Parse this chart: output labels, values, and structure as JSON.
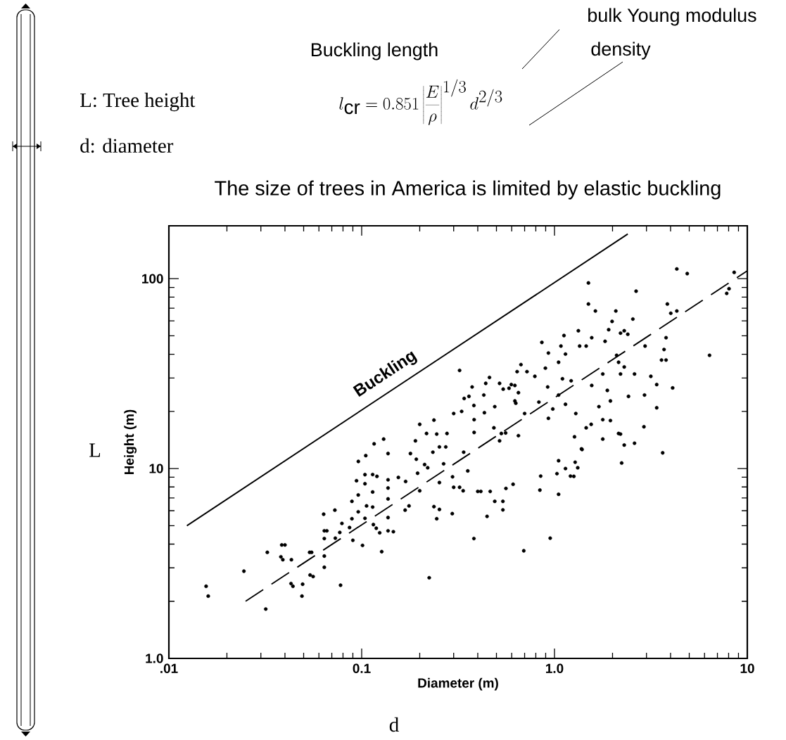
{
  "chart_data": {
    "type": "scatter",
    "title": "The size of trees in America is limited by elastic buckling",
    "xlabel": "Diameter (m)",
    "ylabel": "Height (m)",
    "log": "xy",
    "xlim": [
      0.01,
      10
    ],
    "ylim": [
      1,
      190
    ],
    "xticks": [
      {
        "value": 0.01,
        "label": ".01"
      },
      0.1,
      {
        "value": 1,
        "label": "1.0"
      },
      10
    ],
    "yticks": [
      {
        "value": 1,
        "label": "1.0"
      },
      10,
      100
    ],
    "annotations": [
      "Buckling length",
      "bulk Young modulus",
      "density",
      "l_{\\mathrm{cr}} = 0.851 \\left|\\frac{E}{\\rho}\\right|^{1/3} d^{2/3}",
      "L: Tree height",
      "d: diameter",
      "L",
      "d",
      "Buckling"
    ],
    "series": [
      {
        "color": "#000000",
        "x": [
          0.0156,
          0.016,
          0.0245,
          0.0318,
          0.0324,
          0.0381,
          0.039,
          0.0385,
          0.04,
          0.0432,
          0.043,
          0.044,
          0.0494,
          0.049,
          0.0537,
          0.055,
          0.054,
          0.056,
          0.0635,
          0.064,
          0.066,
          0.064,
          0.064,
          0.064,
          0.0726,
          0.073,
          0.0777,
          0.079,
          0.077,
          0.0865,
          0.089,
          0.09,
          0.089,
          0.0961,
          0.094,
          0.096,
          0.096,
          0.101,
          0.105,
          0.104,
          0.104,
          0.104,
          0.106,
          0.114,
          0.12,
          0.114,
          0.114,
          0.115,
          0.119,
          0.124,
          0.127,
          0.137,
          0.137,
          0.137,
          0.137,
          0.137,
          0.137,
          0.146,
          0.155,
          0.169,
          0.168,
          0.176,
          0.179,
          0.192,
          0.195,
          0.2,
          0.212,
          0.22,
          0.224,
          0.234,
          0.237,
          0.245,
          0.253,
          0.253,
          0.273,
          0.266,
          0.253,
          0.295,
          0.296,
          0.3,
          0.322,
          0.336,
          0.355,
          0.338,
          0.322,
          0.34,
          0.36,
          0.3,
          0.33,
          0.2,
          0.237,
          0.217,
          0.245,
          0.277,
          0.116,
          0.13,
          0.19,
          0.382,
          0.383,
          0.383,
          0.433,
          0.43,
          0.374,
          0.46,
          0.44,
          0.49,
          0.485,
          0.519,
          0.542,
          0.581,
          0.597,
          0.623,
          0.519,
          0.53,
          0.558,
          0.623,
          0.63,
          0.65,
          0.67,
          0.64,
          0.65,
          0.7,
          0.72,
          0.791,
          0.86,
          0.897,
          0.922,
          0.83,
          0.93,
          0.98,
          0.93,
          1.05,
          1.08,
          1.14,
          1.05,
          1.1,
          1.14,
          1.22,
          1.12,
          1.33,
          1.35,
          1.46,
          1.56,
          1.29,
          1.27,
          1.38,
          1.55,
          1.46,
          1.5,
          1.5,
          1.63,
          1.56,
          1.7,
          1.78,
          1.78,
          1.78,
          1.83,
          1.91,
          1.99,
          2.08,
          1.95,
          1.88,
          1.95,
          2.1,
          2.15,
          2.2,
          2.3,
          2.15,
          2.2,
          2.3,
          2.6,
          2.2,
          2.3,
          2.4,
          2.55,
          2.42,
          2.6,
          2.65,
          2.91,
          2.95,
          2.93,
          3.16,
          3.39,
          3.39,
          3.59,
          3.79,
          3.7,
          3.79,
          3.85,
          4.01,
          4.31,
          4.1,
          4.31,
          4.88,
          6.37,
          7.82,
          8.04,
          8.55,
          0.382,
          0.447,
          0.49,
          0.54,
          0.54,
          0.693,
          0.84,
          1.05,
          1.03,
          0.95,
          3.64,
          2.23,
          1.39,
          1.32,
          1.28,
          1.14,
          1.21,
          1.26,
          1.05,
          0.848,
          0.61,
          0.56,
          0.464,
          0.415,
          0.4
        ],
        "values": [
          2.4,
          2.13,
          2.88,
          1.82,
          3.62,
          3.43,
          3.31,
          3.96,
          3.96,
          3.31,
          2.48,
          2.4,
          2.46,
          2.13,
          3.62,
          3.62,
          2.75,
          2.7,
          5.75,
          4.7,
          4.7,
          4.28,
          3.46,
          3.02,
          6.04,
          4.3,
          2.43,
          5.14,
          4.61,
          4.89,
          6.72,
          4.19,
          5.44,
          10.9,
          8.63,
          7.26,
          5.92,
          3.94,
          11.7,
          9.29,
          8.32,
          5.47,
          6.36,
          9.3,
          9.1,
          7.53,
          6.27,
          5.07,
          4.85,
          4.59,
          3.65,
          12.0,
          8.73,
          7.9,
          6.92,
          5.52,
          4.7,
          4.65,
          8.98,
          8.55,
          6.04,
          6.36,
          12.0,
          11.2,
          9.45,
          7.64,
          10.5,
          10.1,
          2.66,
          12.2,
          6.3,
          5.44,
          6.09,
          13.0,
          13.0,
          10.6,
          8.44,
          5.79,
          9.05,
          7.97,
          7.97,
          7.64,
          9.72,
          12.2,
          32.9,
          23.4,
          24,
          19.5,
          20,
          17.1,
          18.0,
          15.3,
          15.2,
          15.3,
          13.5,
          14.3,
          14.0,
          21.5,
          18.1,
          15.5,
          19.7,
          24.4,
          26.9,
          30.2,
          28.1,
          21.2,
          16.4,
          28.1,
          26.2,
          26.5,
          27.7,
          27.4,
          14.0,
          15.3,
          15.4,
          22.7,
          22.1,
          25.1,
          35.3,
          32.4,
          14.9,
          19.5,
          32.4,
          30.6,
          46.2,
          33.8,
          26.9,
          22.4,
          18.4,
          20.6,
          40.6,
          36.3,
          44.2,
          40.1,
          24.4,
          29.7,
          21.8,
          29.0,
          50.2,
          53.2,
          44.2,
          44.2,
          48.9,
          19.5,
          14.7,
          12.7,
          17.1,
          16.4,
          95,
          73.6,
          67.6,
          27.4,
          21.2,
          31.5,
          18.1,
          14.3,
          46.8,
          53.9,
          59.6,
          67.6,
          17.9,
          25.8,
          22.7,
          39.5,
          36.3,
          31.5,
          34.3,
          15.3,
          15.2,
          13.3,
          13.6,
          51.7,
          53.2,
          51.0,
          61.3,
          24.0,
          31.5,
          86.0,
          16.6,
          44.2,
          24.4,
          30.6,
          27.7,
          20.9,
          37.3,
          37.3,
          42.4,
          48.9,
          73.6,
          65.8,
          67.6,
          26.6,
          112.6,
          106.4,
          39.5,
          83.7,
          88.6,
          108,
          4.28,
          5.6,
          6.72,
          6.72,
          6.06,
          3.69,
          7.7,
          7.32,
          9.4,
          4.3,
          12.1,
          10.7,
          12.6,
          10.1,
          10.8,
          10.0,
          9.13,
          9.1,
          11.0,
          9.13,
          8.27,
          7.86,
          7.58,
          7.58,
          7.58
        ]
      },
      {
        "type": "line",
        "color": "#000000",
        "marker": "none",
        "line_style": "solid",
        "x": [
          0.0124,
          2.4
        ],
        "values": [
          5,
          172
        ]
      },
      {
        "type": "line",
        "color": "#000000",
        "marker": "none",
        "line_style": "dashed",
        "x": [
          0.025,
          10
        ],
        "values": [
          2,
          110
        ]
      }
    ]
  }
}
